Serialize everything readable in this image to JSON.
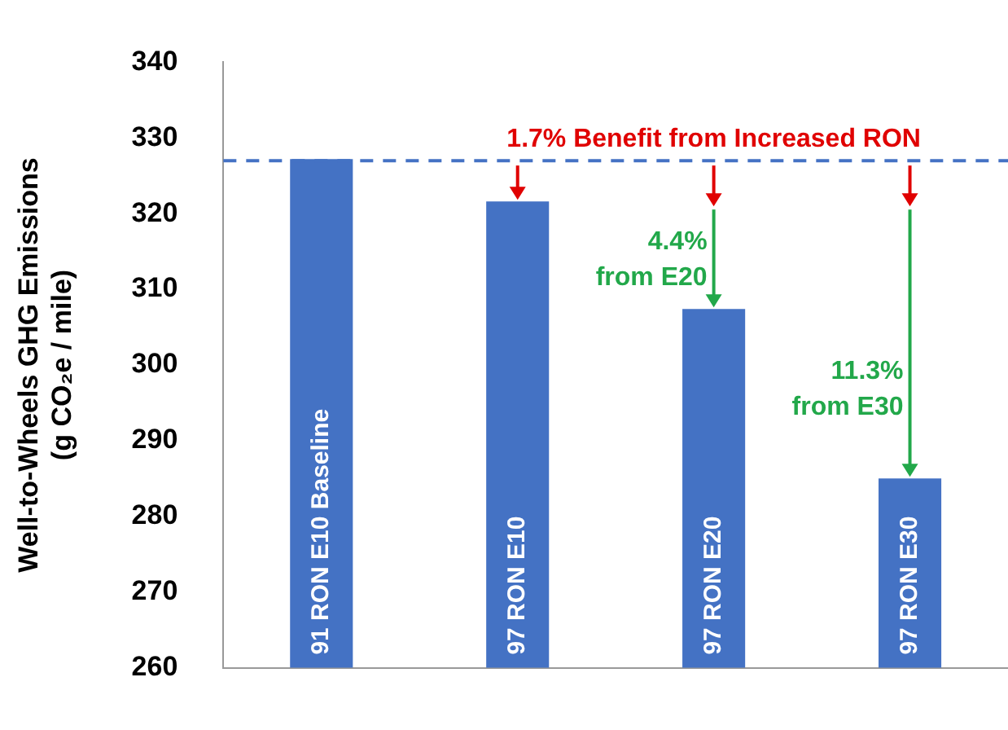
{
  "chart_data": {
    "type": "bar",
    "ylabel": "Well-to-Wheels GHG Emissions\n(g CO₂e / mile)",
    "categories": [
      "91 RON E10 Baseline",
      "97 RON E10",
      "97 RON E20",
      "97 RON E30"
    ],
    "values": [
      327.2,
      321.6,
      307.4,
      285
    ],
    "color": "#4472c4",
    "ylim": [
      260,
      340
    ],
    "yticks": [
      260,
      270,
      280,
      290,
      300,
      310,
      320,
      330,
      340
    ],
    "grid": false,
    "legend": false,
    "tick_labels": "y",
    "ref_lines": [
      {
        "axis": "y",
        "value": 327,
        "color": "#4472c4",
        "line_style": "dashed"
      }
    ],
    "annotations": [
      {
        "text": "1.7% Benefit from Increased RON",
        "x": "97 RON E10",
        "y": 321.6
      },
      {
        "text": "4.4%\nfrom E20",
        "x": "97 RON E20",
        "y": 307.4
      },
      {
        "text": "11.3%\nfrom E30",
        "x": "97 RON E30",
        "y": 285
      }
    ]
  }
}
